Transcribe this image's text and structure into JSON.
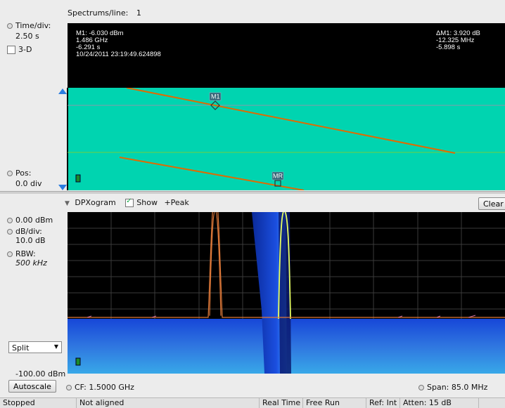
{
  "spectrogram": {
    "spectrums_label": "Spectrums/line:",
    "spectrums_value": "1",
    "time_div_label": "Time/div:",
    "time_div_value": "2.50 s",
    "threed_label": "3-D",
    "threed_checked": false,
    "pos_label": "Pos:",
    "pos_value": "0.0 div",
    "marker_readout": [
      "M1: -6.030 dBm",
      "1.486 GHz",
      "-6.291 s",
      "10/24/2011 23:19:49.624898"
    ],
    "delta_readout": [
      "ΔM1: 3.920 dB",
      "-12.325 MHz",
      "-5.898 s"
    ],
    "marker1_label": "M1",
    "marker_ref_label": "MR",
    "background_color": "#00d4b0",
    "trace_color": "#e26a00"
  },
  "spectrum": {
    "view_label": "DPXogram",
    "show_label": "Show",
    "show_checked": true,
    "peak_label": "+Peak",
    "clear_button": "Clear",
    "ref_level": "0.00 dBm",
    "db_div_label": "dB/div:",
    "db_div_value": "10.0 dB",
    "rbw_label": "RBW:",
    "rbw_value": "500 kHz",
    "bottom_level": "-100.00 dBm",
    "split_select": "Split",
    "autoscale_button": "Autoscale",
    "cf_label": "CF: 1.5000 GHz",
    "span_label": "Span: 85.0 MHz"
  },
  "status_bar": {
    "run_state": "Stopped",
    "alignment": "Not aligned",
    "mode": "Real Time",
    "trigger": "Free Run",
    "ref": "Ref: Int",
    "atten": "Atten: 15 dB"
  },
  "colors": {
    "spectrum_trace": "#e07a3a",
    "dpx_blue": "#1a3fd0",
    "dpx_highlight": "#e8ff60"
  }
}
